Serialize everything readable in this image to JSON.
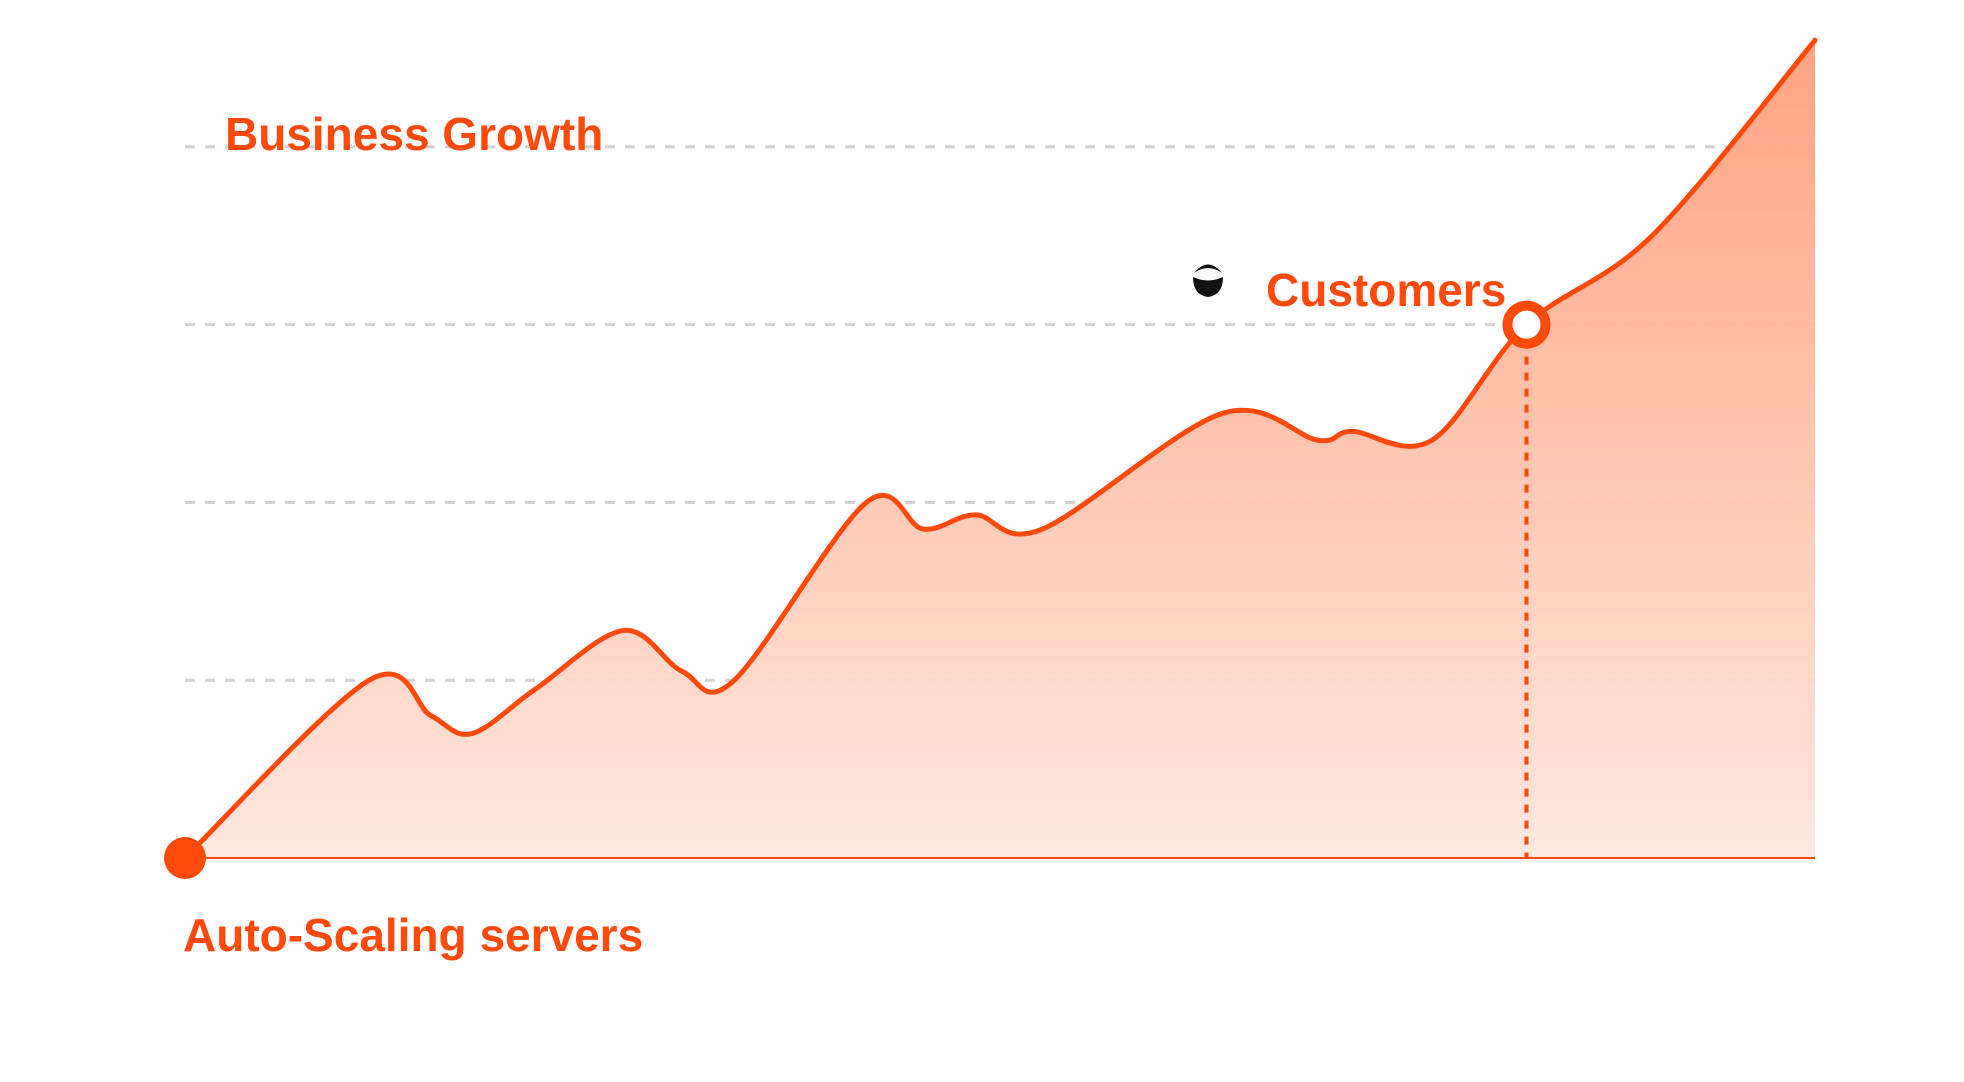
{
  "colors": {
    "accent": "#FF4A0B",
    "fill_top": "#FF9E7A",
    "fill_bottom": "#FFE7DE",
    "grid": "#D2D2D2",
    "axis": "#FF4A0B",
    "icon": "#111111"
  },
  "labels": {
    "title": "Business Growth",
    "marker_label": "Customers",
    "origin_label": "Auto-Scaling servers"
  },
  "icons": {
    "marker_icon": "customers-icon"
  },
  "chart_data": {
    "type": "area",
    "title": "",
    "xlabel": "",
    "ylabel": "",
    "grid": true,
    "gridlines_y": [
      1,
      2,
      3,
      4
    ],
    "xlim": [
      0,
      100
    ],
    "ylim": [
      0,
      4.5
    ],
    "series": [
      {
        "values": [
          {
            "x": 0.0,
            "y": 0.0
          },
          {
            "x": 11.3,
            "y": 1.0
          },
          {
            "x": 15.1,
            "y": 0.8
          },
          {
            "x": 17.6,
            "y": 0.7
          },
          {
            "x": 21.5,
            "y": 0.95
          },
          {
            "x": 26.9,
            "y": 1.28
          },
          {
            "x": 30.5,
            "y": 1.05
          },
          {
            "x": 33.7,
            "y": 1.0
          },
          {
            "x": 41.8,
            "y": 2.0
          },
          {
            "x": 45.3,
            "y": 1.85
          },
          {
            "x": 48.5,
            "y": 1.93
          },
          {
            "x": 52.6,
            "y": 1.85
          },
          {
            "x": 63.6,
            "y": 2.5
          },
          {
            "x": 69.5,
            "y": 2.35
          },
          {
            "x": 71.6,
            "y": 2.4
          },
          {
            "x": 76.5,
            "y": 2.35
          },
          {
            "x": 82.3,
            "y": 3.0
          },
          {
            "x": 90.0,
            "y": 3.5
          },
          {
            "x": 100.0,
            "y": 4.6
          }
        ]
      }
    ],
    "marker": {
      "x": 82.3,
      "y": 3.0,
      "label": "Customers"
    },
    "origin_marker": {
      "x": 0.0,
      "y": 0.0,
      "label": "Auto-Scaling servers"
    }
  }
}
